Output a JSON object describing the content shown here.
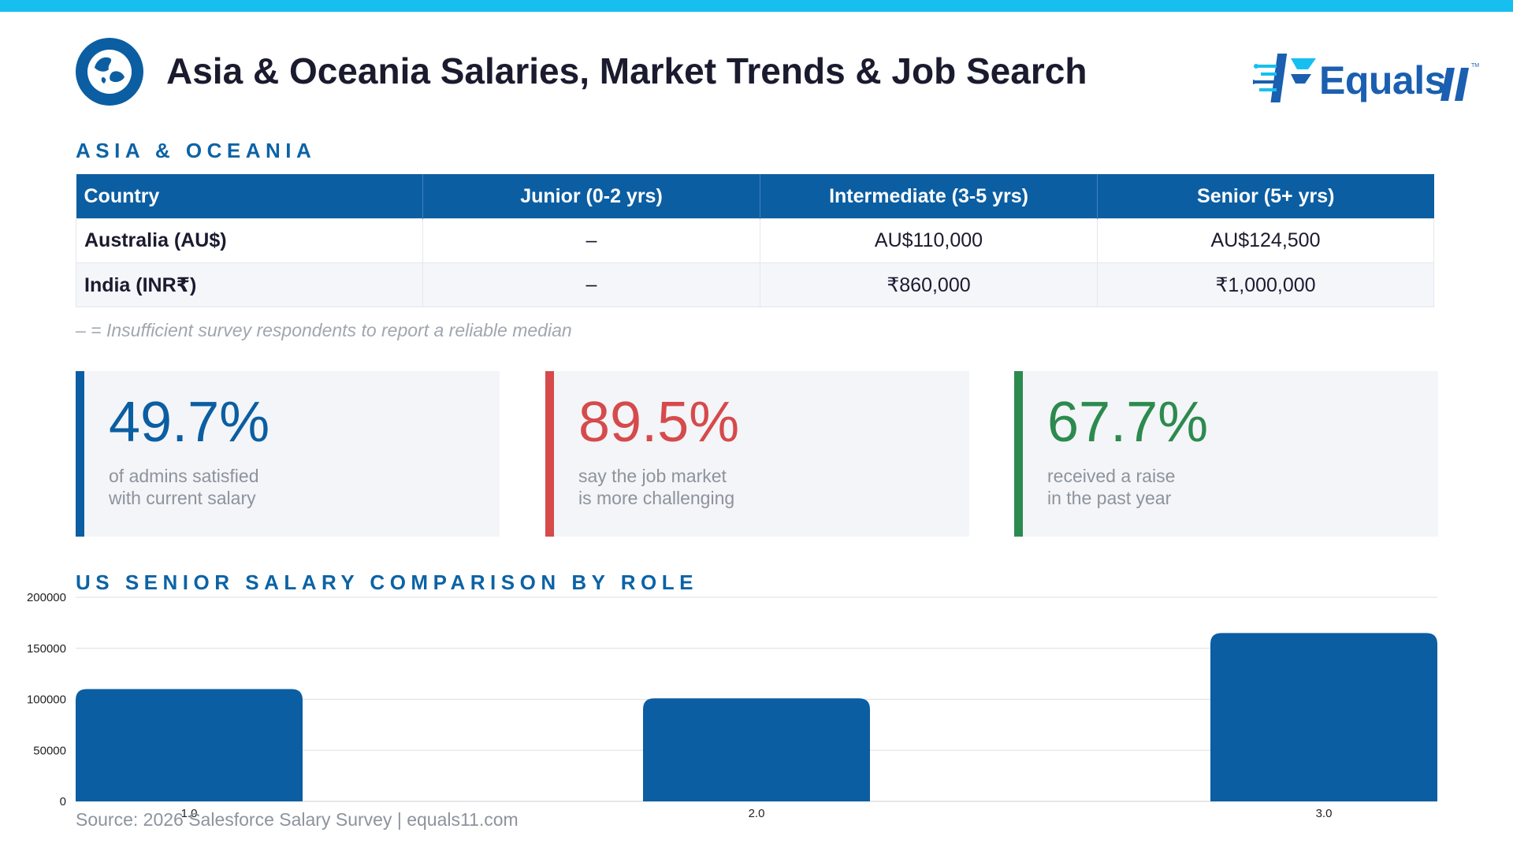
{
  "header": {
    "title": "Asia & Oceania Salaries, Market Trends & Job Search",
    "brand": "Equals",
    "brand_tm": "TM",
    "colors": {
      "top_bar": "#17bff0",
      "brand": "#1a5fb0",
      "accent": "#0b5ea2"
    }
  },
  "table_section": {
    "label": "ASIA & OCEANIA",
    "columns": [
      "Country",
      "Junior (0-2 yrs)",
      "Intermediate (3-5 yrs)",
      "Senior (5+ yrs)"
    ],
    "rows": [
      [
        "Australia (AU$)",
        "–",
        "AU$110,000",
        "AU$124,500"
      ],
      [
        "India (INR₹)",
        "–",
        "₹860,000",
        "₹1,000,000"
      ]
    ],
    "footnote": "– = Insufficient survey respondents to report a reliable median"
  },
  "stats": [
    {
      "value": "49.7%",
      "line1": "of admins satisfied",
      "line2": "with current salary",
      "color": "#0b5ea2"
    },
    {
      "value": "89.5%",
      "line1": "say the job market",
      "line2": "is more challenging",
      "color": "#d64a4b"
    },
    {
      "value": "67.7%",
      "line1": "received a raise",
      "line2": "in the past year",
      "color": "#2d8a4e"
    }
  ],
  "chart_section": {
    "label": "US SENIOR SALARY COMPARISON BY ROLE"
  },
  "chart_data": {
    "type": "bar",
    "x": [
      1.0,
      2.0,
      3.0
    ],
    "tick_labels": [
      "1.0",
      "2.0",
      "3.0"
    ],
    "values": [
      110000,
      101000,
      165000
    ],
    "ylim": [
      0,
      200000
    ],
    "yticks": [
      0,
      50000,
      100000,
      150000,
      200000
    ],
    "grid": true,
    "legend": false,
    "bar_color": "#0b5ea2"
  },
  "footer": {
    "source": "Source: 2026 Salesforce Salary Survey | equals11.com"
  }
}
